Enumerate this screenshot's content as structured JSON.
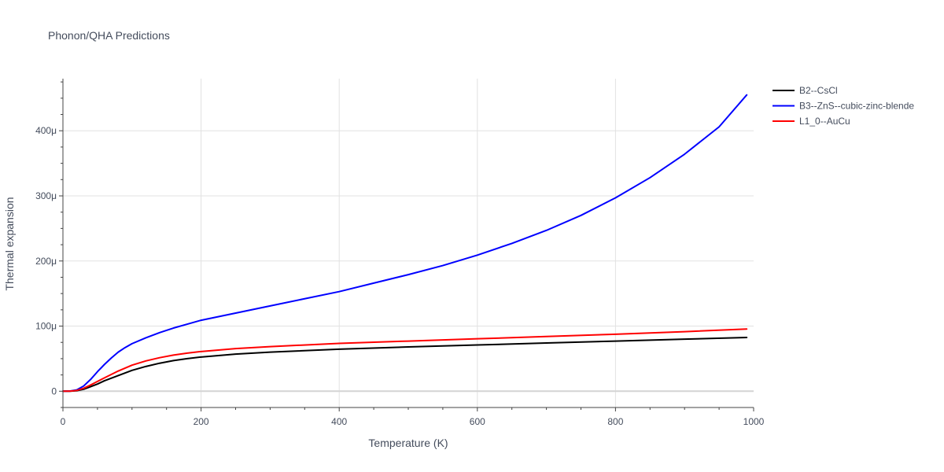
{
  "chart_data": {
    "type": "line",
    "title": "Phonon/QHA Predictions",
    "xlabel": "Temperature (K)",
    "ylabel": "Thermal expansion",
    "xlim": [
      0,
      1000
    ],
    "ylim": [
      -25,
      480
    ],
    "x_ticks": [
      {
        "value": 0,
        "label": "0"
      },
      {
        "value": 200,
        "label": "200"
      },
      {
        "value": 400,
        "label": "400"
      },
      {
        "value": 600,
        "label": "600"
      },
      {
        "value": 800,
        "label": "800"
      },
      {
        "value": 1000,
        "label": "1000"
      }
    ],
    "y_ticks": [
      {
        "value": 0,
        "label": "0"
      },
      {
        "value": 100,
        "label": "100μ"
      },
      {
        "value": 200,
        "label": "200μ"
      },
      {
        "value": 300,
        "label": "300μ"
      },
      {
        "value": 400,
        "label": "400μ"
      }
    ],
    "grid": true,
    "legend_position": "top-right",
    "series": [
      {
        "name": "B2--CsCl",
        "color": "#000000",
        "x": [
          0,
          10,
          20,
          30,
          40,
          50,
          60,
          80,
          100,
          120,
          140,
          160,
          180,
          200,
          250,
          300,
          400,
          500,
          600,
          700,
          800,
          900,
          990
        ],
        "y": [
          0,
          0.1,
          0.8,
          3,
          7,
          11,
          16,
          24,
          32,
          38,
          43,
          47,
          50,
          52.5,
          57,
          60,
          64.5,
          68,
          71,
          74,
          77,
          80,
          82.5
        ]
      },
      {
        "name": "B3--ZnS--cubic-zinc-blende",
        "color": "#0000ff",
        "x": [
          0,
          10,
          20,
          30,
          40,
          50,
          60,
          70,
          80,
          90,
          100,
          120,
          140,
          160,
          180,
          200,
          250,
          300,
          350,
          400,
          450,
          500,
          550,
          600,
          650,
          700,
          750,
          800,
          850,
          900,
          950,
          990
        ],
        "y": [
          0,
          0.2,
          2,
          8,
          18,
          30,
          41,
          51,
          60,
          67,
          73,
          82,
          90,
          97,
          103,
          109,
          120,
          131,
          142,
          153,
          166,
          179,
          193,
          209,
          227,
          247,
          270,
          297,
          328,
          364,
          406,
          455
        ]
      },
      {
        "name": "L1_0--AuCu",
        "color": "#ff0000",
        "x": [
          0,
          10,
          20,
          30,
          40,
          50,
          60,
          80,
          100,
          120,
          140,
          160,
          180,
          200,
          250,
          300,
          400,
          500,
          600,
          700,
          800,
          900,
          990
        ],
        "y": [
          0,
          0.1,
          1.2,
          4.5,
          9.5,
          15,
          20.5,
          31,
          40,
          46.5,
          51.5,
          55.5,
          58.5,
          61,
          65.5,
          68.5,
          73.5,
          77,
          80.5,
          84,
          87.5,
          91.5,
          95.5
        ]
      }
    ]
  }
}
